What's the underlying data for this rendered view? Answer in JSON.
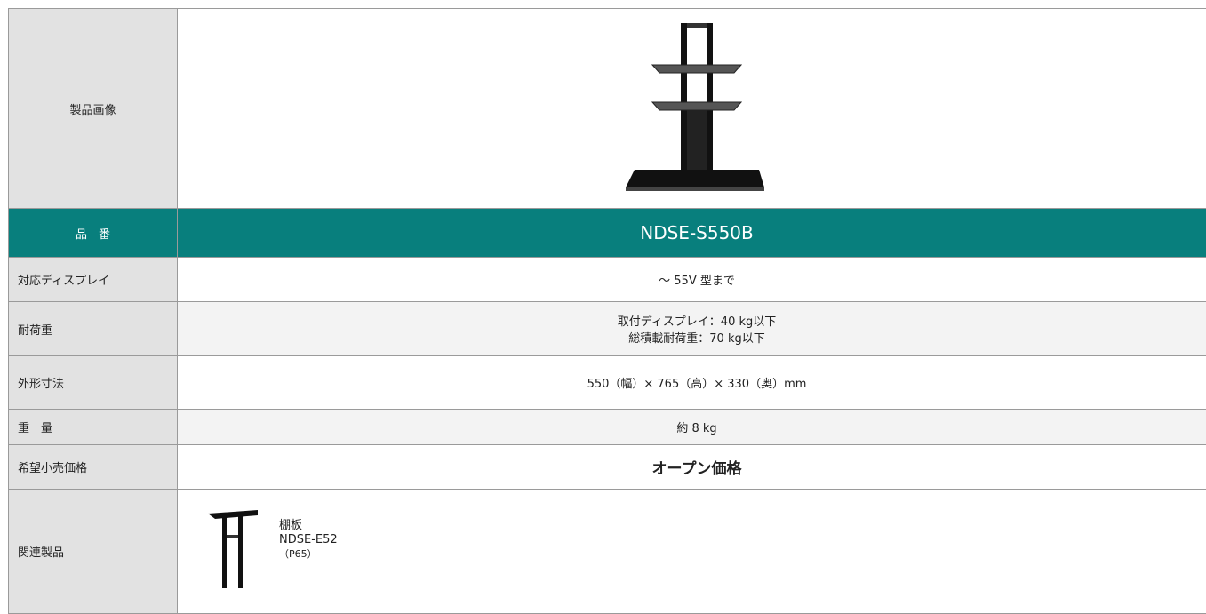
{
  "table": {
    "rows": [
      {
        "label": "製品画像"
      },
      {
        "label": "品　番",
        "value": "NDSE-S550B"
      },
      {
        "label": "対応ディスプレイ",
        "value": "～ 55V 型まで"
      },
      {
        "label": "耐荷重",
        "value": [
          "取付ディスプレイ：40 kg以下",
          "総積載耐荷重：70 kg以下"
        ]
      },
      {
        "label": "外形寸法",
        "value": "550（幅）× 765（高）× 330（奥）mm"
      },
      {
        "label": "重　量",
        "value": "約 8 kg"
      },
      {
        "label": "希望小売価格",
        "value": "オープン価格"
      },
      {
        "label": "関連製品",
        "value": {
          "name": "棚板",
          "code": "NDSE-E52",
          "page": "（P65）"
        }
      }
    ]
  }
}
